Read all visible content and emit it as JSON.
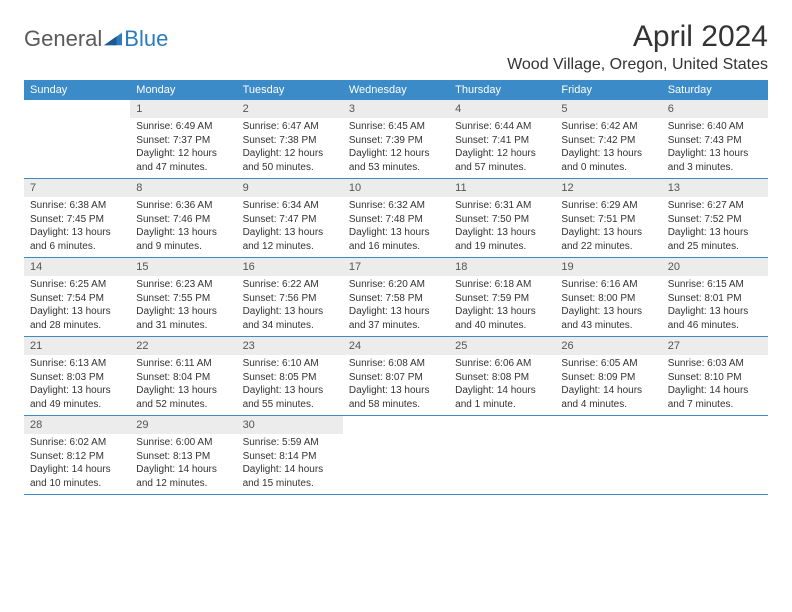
{
  "logo": {
    "text1": "General",
    "text2": "Blue"
  },
  "title": "April 2024",
  "location": "Wood Village, Oregon, United States",
  "colors": {
    "header_bg": "#3b8bc9",
    "header_text": "#ffffff",
    "daynum_bg": "#ececec",
    "daynum_text": "#555555",
    "body_text": "#333333",
    "rule": "#3b8bc9",
    "logo_gray": "#5a5a5a",
    "logo_blue": "#2a7bbf"
  },
  "weekdays": [
    "Sunday",
    "Monday",
    "Tuesday",
    "Wednesday",
    "Thursday",
    "Friday",
    "Saturday"
  ],
  "layout": {
    "first_weekday_index": 1,
    "days_in_month": 30
  },
  "days": [
    {
      "n": 1,
      "sunrise": "6:49 AM",
      "sunset": "7:37 PM",
      "daylight": "12 hours and 47 minutes."
    },
    {
      "n": 2,
      "sunrise": "6:47 AM",
      "sunset": "7:38 PM",
      "daylight": "12 hours and 50 minutes."
    },
    {
      "n": 3,
      "sunrise": "6:45 AM",
      "sunset": "7:39 PM",
      "daylight": "12 hours and 53 minutes."
    },
    {
      "n": 4,
      "sunrise": "6:44 AM",
      "sunset": "7:41 PM",
      "daylight": "12 hours and 57 minutes."
    },
    {
      "n": 5,
      "sunrise": "6:42 AM",
      "sunset": "7:42 PM",
      "daylight": "13 hours and 0 minutes."
    },
    {
      "n": 6,
      "sunrise": "6:40 AM",
      "sunset": "7:43 PM",
      "daylight": "13 hours and 3 minutes."
    },
    {
      "n": 7,
      "sunrise": "6:38 AM",
      "sunset": "7:45 PM",
      "daylight": "13 hours and 6 minutes."
    },
    {
      "n": 8,
      "sunrise": "6:36 AM",
      "sunset": "7:46 PM",
      "daylight": "13 hours and 9 minutes."
    },
    {
      "n": 9,
      "sunrise": "6:34 AM",
      "sunset": "7:47 PM",
      "daylight": "13 hours and 12 minutes."
    },
    {
      "n": 10,
      "sunrise": "6:32 AM",
      "sunset": "7:48 PM",
      "daylight": "13 hours and 16 minutes."
    },
    {
      "n": 11,
      "sunrise": "6:31 AM",
      "sunset": "7:50 PM",
      "daylight": "13 hours and 19 minutes."
    },
    {
      "n": 12,
      "sunrise": "6:29 AM",
      "sunset": "7:51 PM",
      "daylight": "13 hours and 22 minutes."
    },
    {
      "n": 13,
      "sunrise": "6:27 AM",
      "sunset": "7:52 PM",
      "daylight": "13 hours and 25 minutes."
    },
    {
      "n": 14,
      "sunrise": "6:25 AM",
      "sunset": "7:54 PM",
      "daylight": "13 hours and 28 minutes."
    },
    {
      "n": 15,
      "sunrise": "6:23 AM",
      "sunset": "7:55 PM",
      "daylight": "13 hours and 31 minutes."
    },
    {
      "n": 16,
      "sunrise": "6:22 AM",
      "sunset": "7:56 PM",
      "daylight": "13 hours and 34 minutes."
    },
    {
      "n": 17,
      "sunrise": "6:20 AM",
      "sunset": "7:58 PM",
      "daylight": "13 hours and 37 minutes."
    },
    {
      "n": 18,
      "sunrise": "6:18 AM",
      "sunset": "7:59 PM",
      "daylight": "13 hours and 40 minutes."
    },
    {
      "n": 19,
      "sunrise": "6:16 AM",
      "sunset": "8:00 PM",
      "daylight": "13 hours and 43 minutes."
    },
    {
      "n": 20,
      "sunrise": "6:15 AM",
      "sunset": "8:01 PM",
      "daylight": "13 hours and 46 minutes."
    },
    {
      "n": 21,
      "sunrise": "6:13 AM",
      "sunset": "8:03 PM",
      "daylight": "13 hours and 49 minutes."
    },
    {
      "n": 22,
      "sunrise": "6:11 AM",
      "sunset": "8:04 PM",
      "daylight": "13 hours and 52 minutes."
    },
    {
      "n": 23,
      "sunrise": "6:10 AM",
      "sunset": "8:05 PM",
      "daylight": "13 hours and 55 minutes."
    },
    {
      "n": 24,
      "sunrise": "6:08 AM",
      "sunset": "8:07 PM",
      "daylight": "13 hours and 58 minutes."
    },
    {
      "n": 25,
      "sunrise": "6:06 AM",
      "sunset": "8:08 PM",
      "daylight": "14 hours and 1 minute."
    },
    {
      "n": 26,
      "sunrise": "6:05 AM",
      "sunset": "8:09 PM",
      "daylight": "14 hours and 4 minutes."
    },
    {
      "n": 27,
      "sunrise": "6:03 AM",
      "sunset": "8:10 PM",
      "daylight": "14 hours and 7 minutes."
    },
    {
      "n": 28,
      "sunrise": "6:02 AM",
      "sunset": "8:12 PM",
      "daylight": "14 hours and 10 minutes."
    },
    {
      "n": 29,
      "sunrise": "6:00 AM",
      "sunset": "8:13 PM",
      "daylight": "14 hours and 12 minutes."
    },
    {
      "n": 30,
      "sunrise": "5:59 AM",
      "sunset": "8:14 PM",
      "daylight": "14 hours and 15 minutes."
    }
  ],
  "labels": {
    "sunrise": "Sunrise:",
    "sunset": "Sunset:",
    "daylight": "Daylight:"
  }
}
